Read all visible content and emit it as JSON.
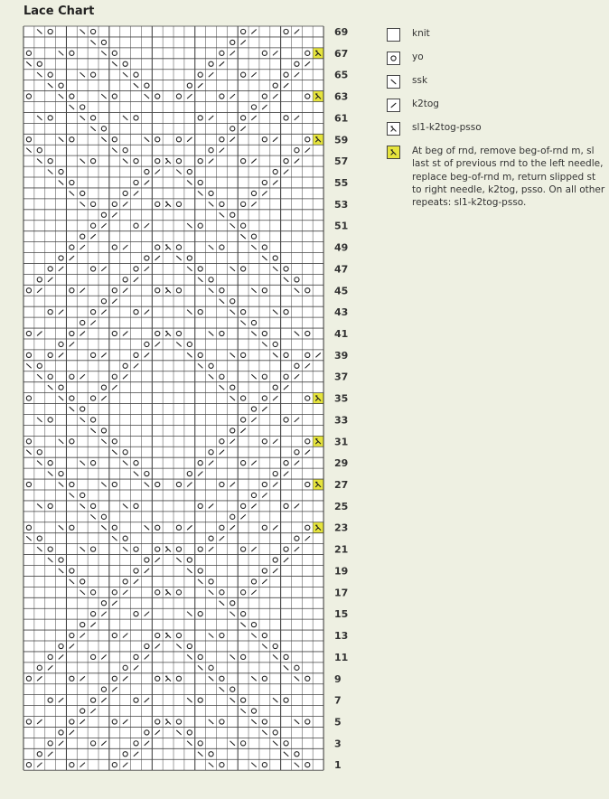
{
  "title": "Lace Chart",
  "colors": {
    "background": "#eef0e2",
    "grid": "#4a4a4a",
    "highlight": "#e6e43c",
    "cell": "#ffffff"
  },
  "legend": [
    {
      "key": ".",
      "icon": "knit-icon",
      "label": "knit"
    },
    {
      "key": "o",
      "icon": "yo-icon",
      "label": "yo"
    },
    {
      "key": "s",
      "icon": "ssk-icon",
      "label": "ssk"
    },
    {
      "key": "k",
      "icon": "k2tog-icon",
      "label": "k2tog"
    },
    {
      "key": "x",
      "icon": "sl1-k2tog-psso-icon",
      "label": "sl1-k2tog-psso"
    },
    {
      "key": "y",
      "icon": "special-sl1-k2tog-psso-icon",
      "label": "At beg of rnd, remove beg-of-rnd m, sl last st of previous rnd to the left needle, replace beg-of-rnd m, return slipped st to right needle, k2tog, psso. On all other repeats: sl1-k2tog-psso."
    }
  ],
  "chart_data": {
    "type": "knitting-chart",
    "stitches_per_row": 28,
    "row_count": 69,
    "row_labels_shown": "odd rows, right side",
    "rows": {
      "69": "1s 2o 5s 6o 20o 21k 24o 25k",
      "68": "6s 7o 19o 20k",
      "67": "0o 3s 4o 7s 8o 18o 19k 22o 23k 26o 27y",
      "66": "0s 1o 8s 9o 17o 18k 25o 26k",
      "65": "1s 2o 5s 6o 9s 10o 16o 17k 20o 21k 24o 25k",
      "64": "2s 3o 10s 11o 15o 16k 23o 24k",
      "63": "0o 3s 4o 7s 8o 11s 12o 14o 15k 18o 19k 22o 23k 26o 27y",
      "62": "4s 5o 21o 22k",
      "61": "1s 2o 5s 6o 9s 10o 16o 17k 20o 21k 24o 25k",
      "60": "6s 7o 19o 20k",
      "59": "0o 3s 4o 7s 8o 11s 12o 14o 15k 18o 19k 22o 23k 26o 27y",
      "58": "0s 1o 8s 9o 17o 18k 25o 26k",
      "57": "1s 2o 5s 6o 9s 10o 12o 13x 14o 16o 17k 20o 21k 24o 25k",
      "56": "2s 3o 11o 12k 14s 15o 23o 24k",
      "55": "3s 4o 10o 11k 15s 16o 22o 23k",
      "54": "4s 5o 9o 10k 16s 17o 21o 22k",
      "53": "5s 6o 8o 9k 12o 13x 14o 17s 18o 20o 21k",
      "52": "7o 8k 18s 19o",
      "51": "6o 7k 10o 11k 15s 16o 19s 20o",
      "50": "5o 6k 20s 21o",
      "49": "4o 5k 8o 9k 12o 13x 14o 17s 18o 21s 22o",
      "48": "3o 4k 11o 12k 14s 15o 22s 23o",
      "47": "2o 3k 6o 7k 10o 11k 15s 16o 19s 20o 23s 24o",
      "46": "1o 2k 9o 10k 16s 17o 24s 25o",
      "45": "0o 1k 4o 5k 8o 9k 12o 13x 14o 17s 18o 21s 22o 25s 26o",
      "44": "7o 8k 18s 19o",
      "43": "2o 3k 6o 7k 10o 11k 15s 16o 19s 20o 23s 24o",
      "42": "5o 6k 20s 21o",
      "41": "0o 1k 4o 5k 8o 9k 12o 13x 14o 17s 18o 21s 22o 25s 26o",
      "40": "3o 4k 11o 12k 14s 15o 22s 23o",
      "39": "0o 2o 3k 6o 7k 10o 11k 15s 16o 19s 20o 23s 24o 26o 27k",
      "38": "0s 1o 9o 10k 16s 17o 25o 26k",
      "37": "1s 2o 4o 5k 8o 9k 17s 18o 21s 22o 24o 25k",
      "36": "2s 3o 7o 8k 18s 19o 23o 24k",
      "35": "0o 3s 4o 6o 7k 19s 20o 22o 23k 26o 27y",
      "34": "4s 5o 21o 22k",
      "33": "1s 2o 5s 6o 20o 21k 24o 25k",
      "32": "6s 7o 19o 20k",
      "31": "0o 3s 4o 7s 8o 18o 19k 22o 23k 26o 27y",
      "30": "0s 1o 8s 9o 17o 18k 25o 26k",
      "29": "1s 2o 5s 6o 9s 10o 16o 17k 20o 21k 24o 25k",
      "28": "2s 3o 10s 11o 15o 16k 23o 24k",
      "27": "0o 3s 4o 7s 8o 11s 12o 14o 15k 18o 19k 22o 23k 26o 27y",
      "26": "4s 5o 21o 22k",
      "25": "1s 2o 5s 6o 9s 10o 16o 17k 20o 21k 24o 25k",
      "24": "6s 7o 19o 20k",
      "23": "0o 3s 4o 7s 8o 11s 12o 14o 15k 18o 19k 22o 23k 26o 27y",
      "22": "0s 1o 8s 9o 17o 18k 25o 26k",
      "21": "1s 2o 5s 6o 9s 10o 12o 13x 14o 16o 17k 20o 21k 24o 25k",
      "20": "2s 3o 11o 12k 14s 15o 23o 24k",
      "19": "3s 4o 10o 11k 15s 16o 22o 23k",
      "18": "4s 5o 9o 10k 16s 17o 21o 22k",
      "17": "5s 6o 8o 9k 12o 13x 14o 17s 18o 20o 21k",
      "16": "7o 8k 18s 19o",
      "15": "6o 7k 10o 11k 15s 16o 19s 20o",
      "14": "5o 6k 20s 21o",
      "13": "4o 5k 8o 9k 12o 13x 14o 17s 18o 21s 22o",
      "12": "3o 4k 11o 12k 14s 15o 22s 23o",
      "11": "2o 3k 6o 7k 10o 11k 15s 16o 19s 20o 23s 24o",
      "10": "1o 2k 9o 10k 16s 17o 24s 25o",
      "9": "0o 1k 4o 5k 8o 9k 12o 13x 14o 17s 18o 21s 22o 25s 26o",
      "8": "7o 8k 18s 19o",
      "7": "2o 3k 6o 7k 10o 11k 15s 16o 19s 20o 23s 24o",
      "6": "5o 6k 20s 21o",
      "5": "0o 1k 4o 5k 8o 9k 12o 13x 14o 17s 18o 21s 22o 25s 26o",
      "4": "3o 4k 11o 12k 14s 15o 22s 23o",
      "3": "2o 3k 6o 7k 10o 11k 15s 16o 19s 20o 23s 24o",
      "2": "1o 2k 9o 10k 16s 17o 24s 25o",
      "1": "0o 1k 4o 5k 8o 9k 17s 18o 21s 22o 25s 26o"
    }
  }
}
